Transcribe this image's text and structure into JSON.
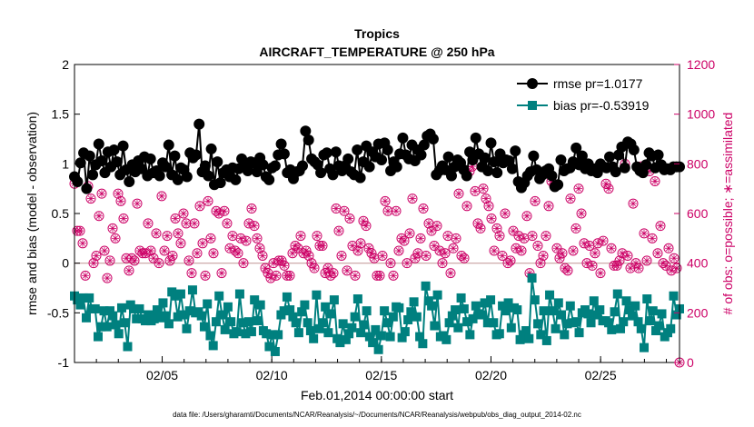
{
  "chart_data": {
    "type": "line",
    "title": "Tropics",
    "subtitle": "AIRCRAFT_TEMPERATURE @ 250 hPa",
    "xlabel": "Feb.01,2014 00:00:00 start",
    "ylabel_left": "rmse and bias (model - observation)",
    "ylabel_right": "# of obs: o=possible; ∗=assimilated",
    "footnote": "data file: /Users/gharamti/Documents/NCAR/Reanalysis/~/Documents/NCAR/Reanalysis/webpub/obs_diag_output_2014-02.nc",
    "x_range_days": [
      1,
      28.6
    ],
    "ylim_left": [
      -1,
      2
    ],
    "ylim_right": [
      0,
      1200
    ],
    "yticks_left": [
      "-1",
      "-0.5",
      "0",
      "0.5",
      "1",
      "1.5",
      "2"
    ],
    "yticks_right": [
      "0",
      "200",
      "400",
      "600",
      "800",
      "1000",
      "1200"
    ],
    "xtick_labels": [
      "02/05",
      "02/10",
      "02/15",
      "02/20",
      "02/25"
    ],
    "xtick_days": [
      5,
      10,
      15,
      20,
      25
    ],
    "colors": {
      "rmse": "#000000",
      "bias": "#00807f",
      "obs": "#cc0066",
      "zero": "#c8a0a0",
      "axis": "#000000"
    },
    "legend": [
      {
        "name": "rmse pr=1.0177",
        "color": "#000000",
        "marker": "circle"
      },
      {
        "name": "bias pr=-0.53919",
        "color": "#00807f",
        "marker": "square"
      }
    ],
    "series": [
      {
        "name": "rmse",
        "values": [
          0.87,
          0.82,
          1.01,
          1.11,
          0.75,
          1.08,
          0.89,
          0.99,
          1.2,
          1.03,
          0.91,
          1.12,
          0.97,
          1.14,
          1.02,
          0.89,
          1.18,
          0.94,
          0.82,
          0.99,
          0.92,
          1.03,
          0.95,
          1.07,
          0.88,
          1.05,
          0.91,
          0.93,
          0.88,
          1.01,
          0.97,
          1.19,
          0.89,
          1.08,
          0.84,
          0.96,
          0.94,
          0.87,
          1.11,
          1.06,
          1.09,
          1.4,
          0.92,
          0.98,
          0.88,
          1.15,
          0.79,
          1.02,
          0.81,
          0.91,
          0.94,
          0.87,
          0.96,
          0.84,
          0.95,
          1.05,
          0.99,
          0.93,
          1.02,
          1.01,
          0.92,
          1.06,
          0.99,
          0.87,
          0.84,
          0.96,
          0.98,
          1.09,
          1.2,
          1.1,
          0.91,
          0.94,
          0.85,
          0.92,
          0.93,
          0.98,
          1.33,
          1.24,
          1.05,
          1.02,
          0.99,
          0.91,
          1.09,
          1.11,
          0.95,
          0.89,
          1.12,
          0.98,
          0.93,
          0.98,
          1.05,
          0.92,
          0.89,
          1.14,
          0.86,
          1.02,
          1.18,
          0.97,
          1.12,
          1.07,
          1.2,
          1.04,
          1.21,
          1.14,
          0.93,
          1.02,
          0.97,
          1.1,
          1.26,
          1.09,
          1.05,
          1.19,
          1.03,
          1.14,
          1.09,
          1.19,
          1.28,
          1.3,
          1.25,
          0.89,
          0.93,
          0.98,
          0.94,
          1.07,
          0.88,
          0.97,
          1.04,
          1.01,
          0.94,
          0.88,
          1.12,
          1.04,
          1.26,
          1.1,
          0.97,
          1.06,
          0.93,
          1.21,
          1.02,
          0.91,
          1.1,
          1.01,
          1.04,
          1.03,
          0.95,
          1.13,
          0.82,
          0.76,
          0.81,
          0.88,
          0.92,
          1.08,
          0.94,
          0.85,
          0.89,
          0.93,
          0.95,
          0.88,
          0.77,
          0.79,
          1.04,
          0.93,
          0.95,
          0.96,
          1.02,
          1.16,
          0.99,
          1.08,
          0.95,
          1.0,
          0.93,
          0.95,
          0.91,
          1.0,
          0.97,
          0.96,
          1.07,
          0.97,
          0.92,
          1.09,
          1.17,
          0.96,
          1.22,
          1.2,
          1.14,
          0.97,
          0.93,
          0.91,
          0.99,
          1.11,
          1.08,
          0.96,
          1.09,
          0.99,
          0.94,
          0.95,
          0.94,
          0.97,
          0.97,
          0.97
        ]
      },
      {
        "name": "bias",
        "values": [
          -0.33,
          -0.37,
          -0.42,
          -0.35,
          -0.55,
          -0.35,
          -0.46,
          -0.46,
          -0.74,
          -0.64,
          -0.48,
          -0.64,
          -0.48,
          -0.53,
          -0.62,
          -0.71,
          -0.45,
          -0.6,
          -0.84,
          -0.42,
          -0.46,
          -0.56,
          -0.46,
          -0.56,
          -0.58,
          -0.52,
          -0.58,
          -0.56,
          -0.47,
          -0.55,
          -0.4,
          -0.53,
          -0.61,
          -0.29,
          -0.33,
          -0.54,
          -0.31,
          -0.52,
          -0.66,
          -0.48,
          -0.27,
          -0.5,
          -0.49,
          -0.53,
          -0.64,
          -0.41,
          -0.73,
          -0.83,
          -0.59,
          -0.33,
          -0.52,
          -0.67,
          -0.44,
          -0.59,
          -0.71,
          -0.69,
          -0.31,
          -0.6,
          -0.71,
          -0.59,
          -0.69,
          -0.37,
          -0.58,
          -0.42,
          -0.68,
          -0.71,
          -0.84,
          -0.72,
          -0.89,
          -0.72,
          -0.52,
          -0.48,
          -0.34,
          -0.47,
          -0.54,
          -0.6,
          -0.7,
          -0.49,
          -0.42,
          -0.6,
          -0.68,
          -0.76,
          -0.32,
          -0.66,
          -0.6,
          -0.44,
          -0.7,
          -0.51,
          -0.37,
          -0.76,
          -0.8,
          -0.61,
          -0.77,
          -0.71,
          -0.65,
          -0.54,
          -0.36,
          -0.7,
          -0.62,
          -0.48,
          -0.74,
          -0.8,
          -0.67,
          -0.87,
          -0.73,
          -0.48,
          -0.6,
          -0.74,
          -0.54,
          -0.44,
          -0.45,
          -0.75,
          -0.69,
          -0.57,
          -0.49,
          -0.39,
          -0.54,
          -0.74,
          -0.81,
          -0.23,
          -0.38,
          -0.43,
          -0.63,
          -0.32,
          -0.74,
          -0.73,
          -0.77,
          -0.6,
          -0.53,
          -0.47,
          -0.65,
          -0.35,
          -0.46,
          -0.59,
          -0.72,
          -0.56,
          -0.43,
          -0.51,
          -0.52,
          -0.4,
          -0.6,
          -0.37,
          -0.6,
          -0.72,
          -0.71,
          -0.43,
          -0.48,
          -0.4,
          -0.65,
          -0.45,
          -0.47,
          -0.77,
          -0.72,
          -0.68,
          -0.76,
          -0.15,
          -0.37,
          -0.61,
          -0.72,
          -0.48,
          -0.78,
          -0.32,
          -0.48,
          -0.66,
          -0.4,
          -0.52,
          -0.72,
          -0.61,
          -0.43,
          -0.6,
          -0.59,
          -0.7,
          -0.5,
          -0.47,
          -0.51,
          -0.6,
          -0.38,
          -0.52,
          -0.47,
          -0.58,
          -0.58,
          -0.6,
          -0.67,
          -0.49,
          -0.31,
          -0.66,
          -0.59,
          -0.38,
          -0.47,
          -0.53,
          -0.43,
          -0.59,
          -0.66,
          -0.85,
          -0.36,
          -0.58,
          -0.48,
          -0.68,
          -0.63,
          -0.51,
          -0.74,
          -0.7,
          -0.66,
          -0.33,
          -0.52,
          -0.46
        ]
      },
      {
        "name": "obs possible/assimilated",
        "values": [
          720,
          530,
          530,
          480,
          350,
          710,
          660,
          400,
          430,
          590,
          680,
          450,
          340,
          410,
          540,
          500,
          680,
          650,
          580,
          420,
          370,
          420,
          410,
          640,
          450,
          440,
          440,
          560,
          450,
          420,
          520,
          400,
          670,
          450,
          510,
          410,
          430,
          580,
          520,
          480,
          600,
          560,
          410,
          360,
          560,
          440,
          630,
          480,
          350,
          650,
          500,
          440,
          610,
          600,
          360,
          610,
          560,
          460,
          510,
          450,
          440,
          500,
          400,
          490,
          560,
          620,
          550,
          500,
          460,
          430,
          380,
          360,
          340,
          400,
          350,
          410,
          410,
          390,
          350,
          350,
          440,
          470,
          460,
          510,
          440,
          450,
          430,
          400,
          380,
          510,
          470,
          470,
          360,
          380,
          350,
          360,
          620,
          530,
          430,
          610,
          370,
          580,
          470,
          350,
          450,
          480,
          570,
          550,
          460,
          440,
          420,
          350,
          350,
          430,
          650,
          610,
          400,
          350,
          610,
          450,
          500,
          490,
          400,
          520,
          660,
          420,
          440,
          500,
          620,
          430,
          560,
          530,
          470,
          550,
          450,
          400,
          440,
          510,
          360,
          460,
          500,
          680,
          430,
          420,
          630,
          770,
          790,
          690,
          560,
          540,
          700,
          660,
          630,
          580,
          450,
          540,
          510,
          430,
          600,
          400,
          410,
          530,
          460,
          510,
          450,
          500,
          590,
          360,
          510,
          650,
          470,
          400,
          430,
          510,
          630,
          730,
          710,
          460,
          420,
          440,
          380,
          370,
          660,
          450,
          540,
          700,
          600,
          480,
          400,
          470,
          390,
          440,
          480,
          360,
          490,
          720,
          700,
          460,
          390,
          390,
          410,
          440,
          800,
          430,
          380,
          640,
          400,
          380,
          790,
          520,
          410,
          770,
          500,
          730,
          440,
          550,
          400,
          390,
          460,
          370,
          420,
          380,
          0
        ]
      }
    ]
  }
}
